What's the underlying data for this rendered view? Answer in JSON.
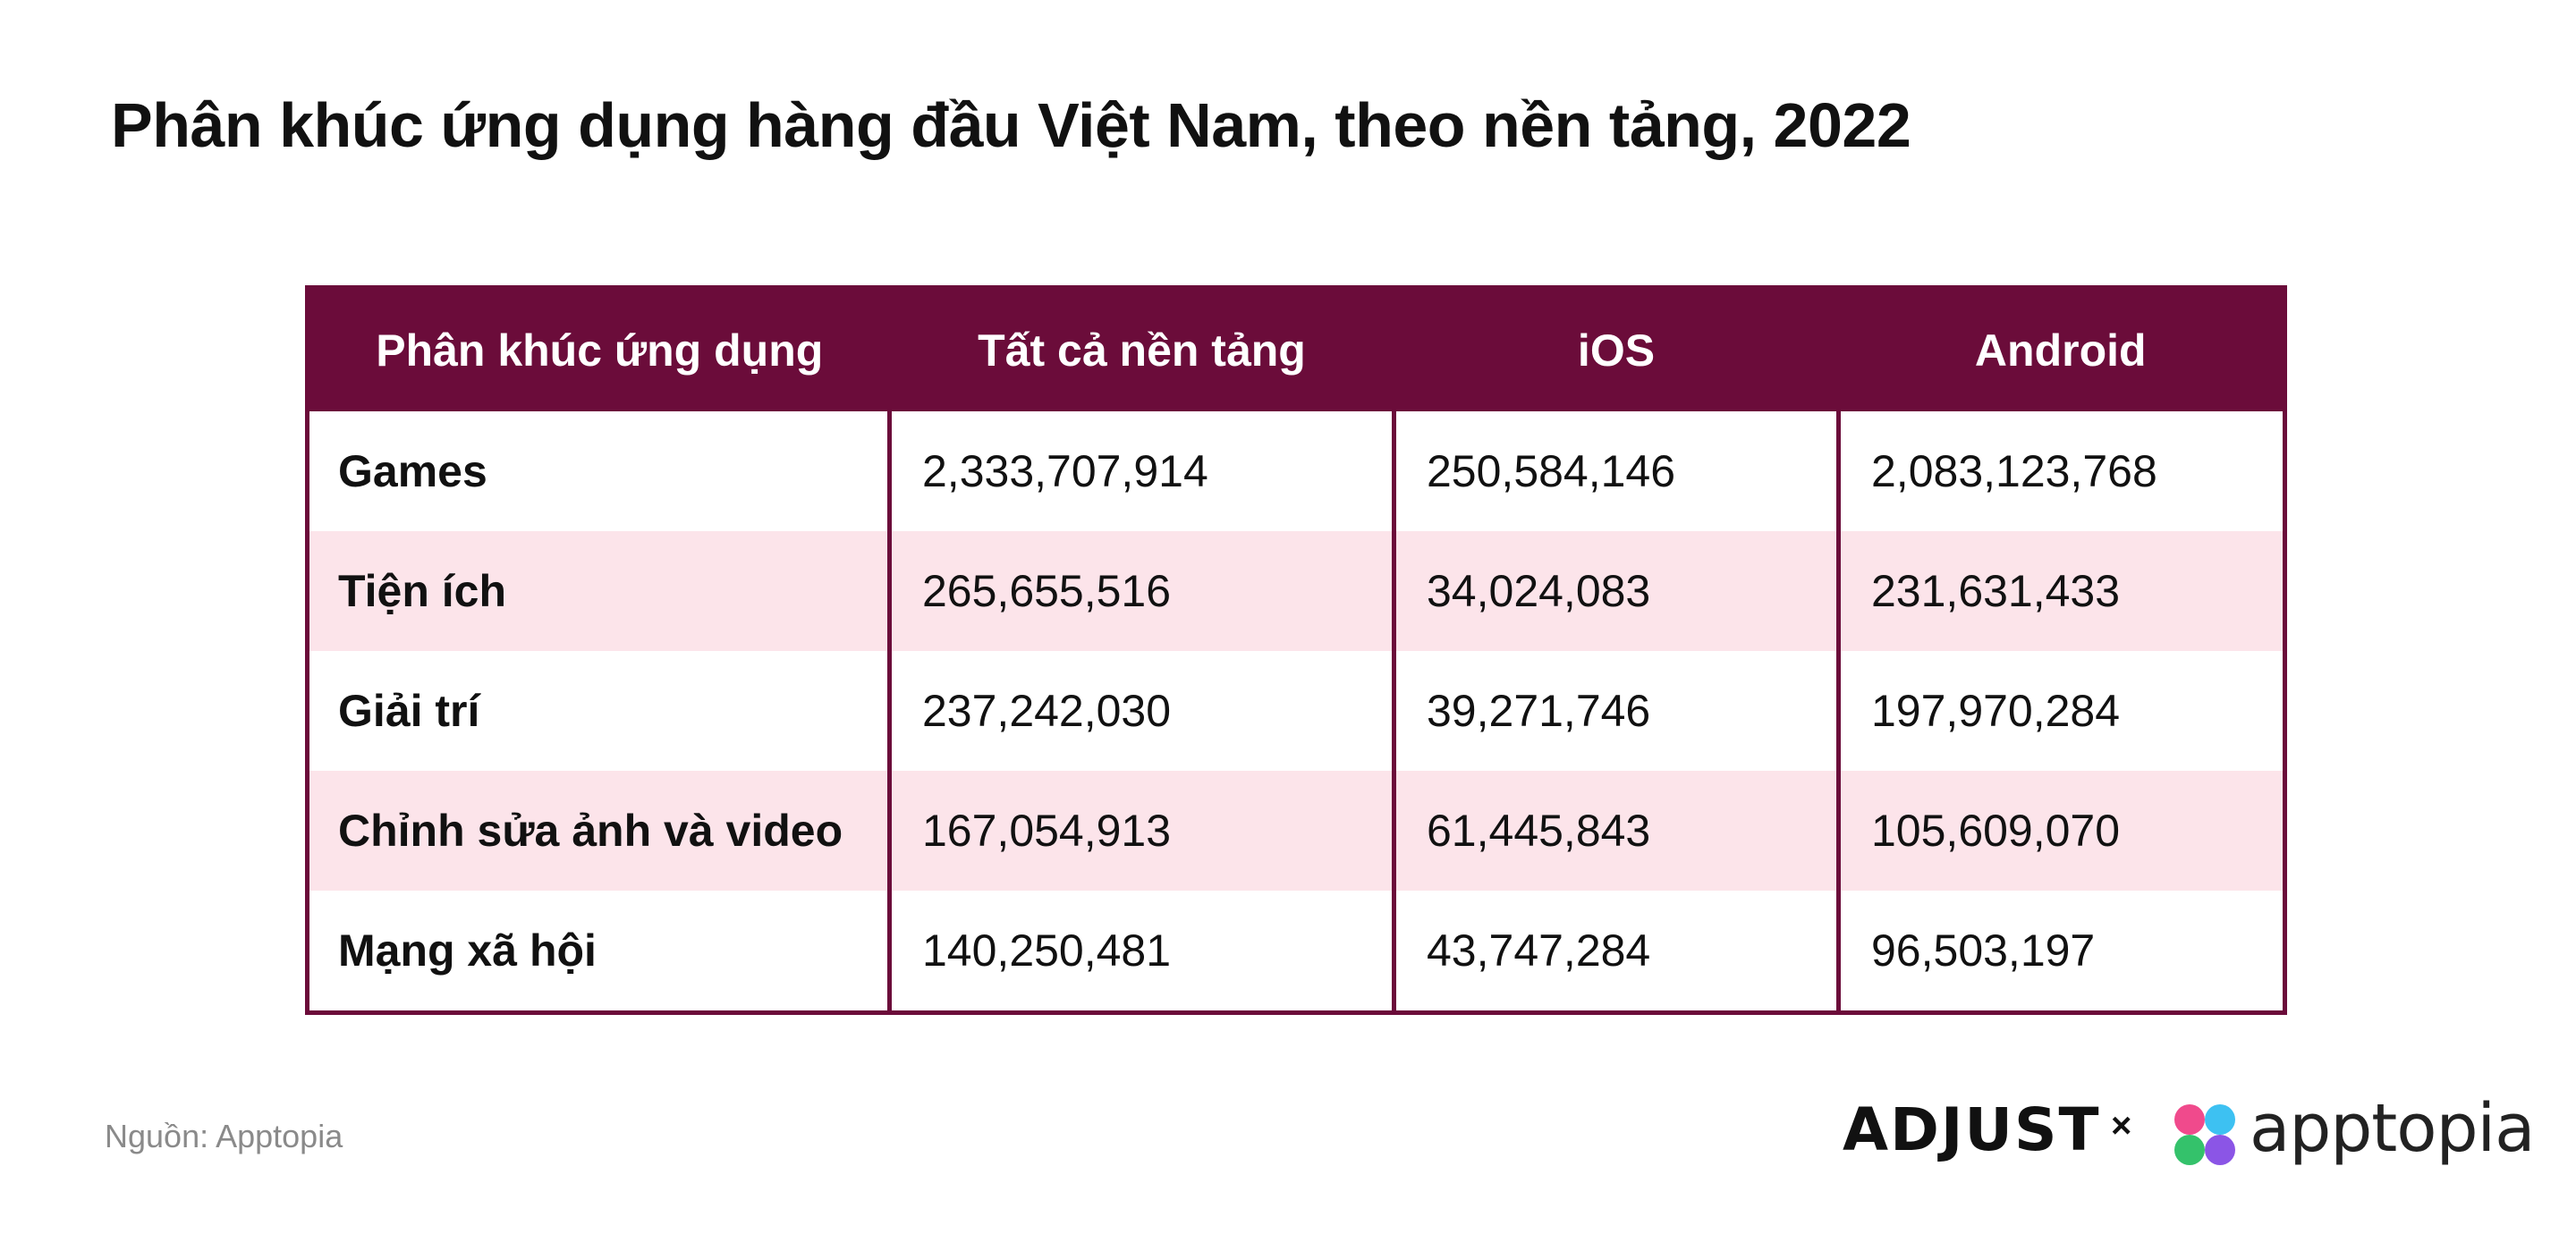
{
  "title": "Phân khúc ứng dụng hàng đầu Việt Nam, theo nền tảng, 2022",
  "source": "Nguồn: Apptopia",
  "logos": {
    "left": "ADJUST",
    "separator": "×",
    "right": "apptopia"
  },
  "colors": {
    "header": "#6b0c3a",
    "alt_row": "#fce4ea",
    "logo_petals": [
      "#f04a8c",
      "#3dc1f2",
      "#34c26b",
      "#8b55e6"
    ]
  },
  "chart_data": {
    "type": "table",
    "title": "Phân khúc ứng dụng hàng đầu Việt Nam, theo nền tảng, 2022",
    "headers": [
      "Phân khúc ứng dụng",
      "Tất cả nền tảng",
      "iOS",
      "Android"
    ],
    "rows": [
      [
        "Games",
        "2,333,707,914",
        "250,584,146",
        "2,083,123,768"
      ],
      [
        "Tiện ích",
        "265,655,516",
        "34,024,083",
        "231,631,433"
      ],
      [
        "Giải trí",
        "237,242,030",
        "39,271,746",
        "197,970,284"
      ],
      [
        "Chỉnh sửa ảnh và video",
        "167,054,913",
        "61,445,843",
        "105,609,070"
      ],
      [
        "Mạng xã hội",
        "140,250,481",
        "43,747,284",
        "96,503,197"
      ]
    ]
  }
}
